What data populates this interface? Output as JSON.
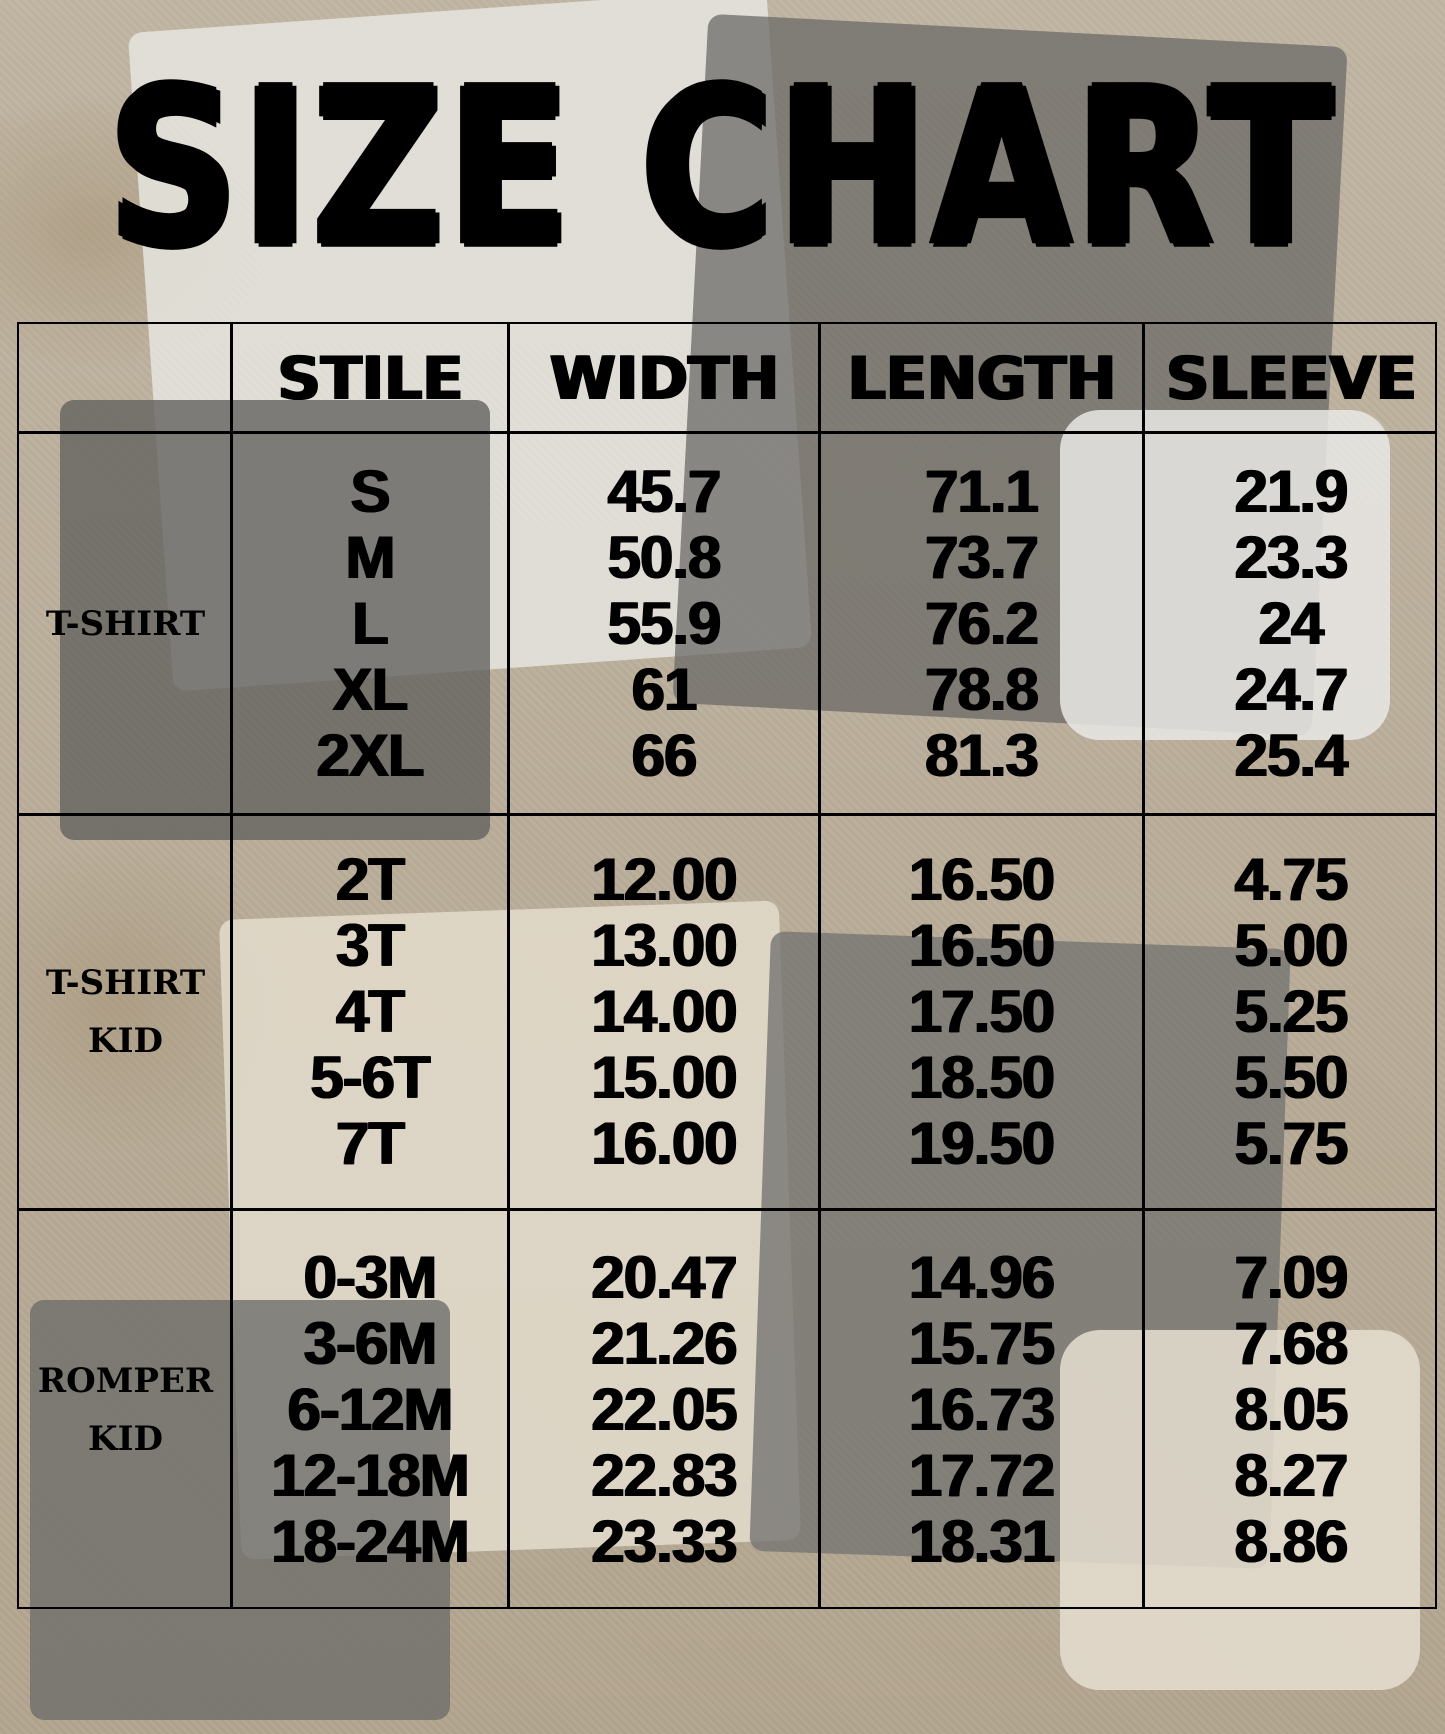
{
  "title": "SIZE CHART",
  "headers": [
    "STILE",
    "WIDTH",
    "LENGTH",
    "SLEEVE"
  ],
  "groups": [
    {
      "category": "T-SHIRT",
      "sizes": [
        "S",
        "M",
        "L",
        "XL",
        "2XL"
      ],
      "width": [
        "45.7",
        "50.8",
        "55.9",
        "61",
        "66"
      ],
      "length": [
        "71.1",
        "73.7",
        "76.2",
        "78.8",
        "81.3"
      ],
      "sleeve": [
        "21.9",
        "23.3",
        "24",
        "24.7",
        "25.4"
      ]
    },
    {
      "category": "T-SHIRT\nKID",
      "sizes": [
        "2T",
        "3T",
        "4T",
        "5-6T",
        "7T"
      ],
      "width": [
        "12.00",
        "13.00",
        "14.00",
        "15.00",
        "16.00"
      ],
      "length": [
        "16.50",
        "16.50",
        "17.50",
        "18.50",
        "19.50"
      ],
      "sleeve": [
        "4.75",
        "5.00",
        "5.25",
        "5.50",
        "5.75"
      ]
    },
    {
      "category": "ROMPER\nKID",
      "sizes": [
        "0-3M",
        "3-6M",
        "6-12M",
        "12-18M",
        "18-24M"
      ],
      "width": [
        "20.47",
        "21.26",
        "22.05",
        "22.83",
        "23.33"
      ],
      "length": [
        "14.96",
        "15.75",
        "16.73",
        "17.72",
        "18.31"
      ],
      "sleeve": [
        "7.09",
        "7.68",
        "8.05",
        "8.27",
        "8.86"
      ]
    }
  ]
}
